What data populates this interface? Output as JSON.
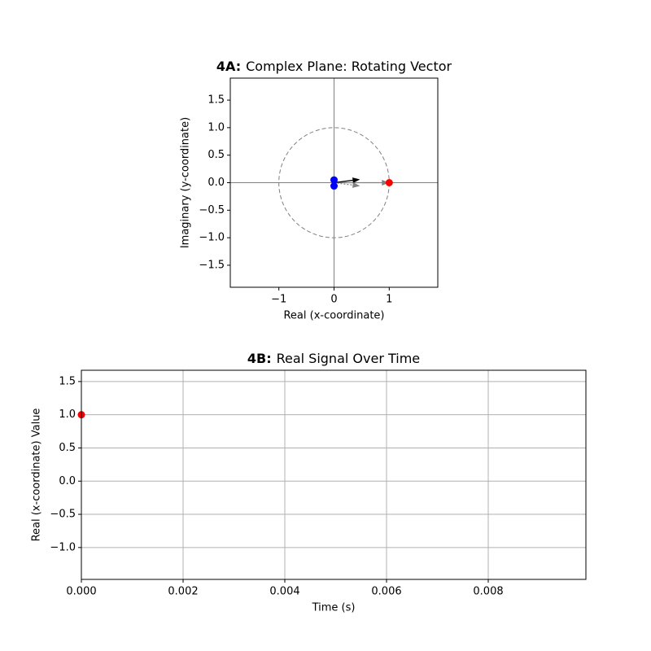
{
  "chart_data": [
    {
      "type": "vector",
      "title_label": "4A:",
      "title": "Complex Plane: Rotating Vector",
      "x_label": "Real (x-coordinate)",
      "y_label": "Imaginary (y-coordinate)",
      "xlim": [
        -1.88,
        1.88
      ],
      "ylim": [
        -1.9,
        1.9
      ],
      "xticks": [
        {
          "value": -1,
          "label": "−1"
        },
        0,
        1
      ],
      "yticks": [
        {
          "value": -1.5,
          "label": "−1.5"
        },
        {
          "value": -1.0,
          "label": "−1.0"
        },
        {
          "value": -0.5,
          "label": "−0.5"
        },
        {
          "value": 0.0,
          "label": "0.0"
        },
        0.5,
        {
          "value": 1.0,
          "label": "1.0"
        },
        1.5
      ],
      "zero_lines": true,
      "circle_radius": 1,
      "arrows": [
        {
          "color": "#808080",
          "dash": false,
          "x": 1,
          "y": 0
        },
        {
          "color": "#000000",
          "dash": false,
          "x": 0.47,
          "y": 0.06
        },
        {
          "color": "#808080",
          "dash": true,
          "x": 0.47,
          "y": -0.06
        }
      ],
      "points": [
        {
          "color": "#ff0000",
          "x": 1,
          "y": 0
        },
        {
          "color": "#0000ff",
          "x": 0,
          "y": 0.05
        },
        {
          "color": "#0000ff",
          "x": 0,
          "y": -0.06
        }
      ]
    },
    {
      "type": "line",
      "title_label": "4B:",
      "title": "Real Signal Over Time",
      "x_label": "Time (s)",
      "y_label": "Real (x-coordinate) Value",
      "xlim": [
        0,
        0.00992
      ],
      "ylim": [
        -1.48,
        1.67
      ],
      "xticks": [
        {
          "value": 0,
          "label": "0.000"
        },
        {
          "value": 0.002,
          "label": "0.002"
        },
        {
          "value": 0.004,
          "label": "0.004"
        },
        {
          "value": 0.006,
          "label": "0.006"
        },
        {
          "value": 0.008,
          "label": "0.008"
        }
      ],
      "yticks": [
        {
          "value": -1.0,
          "label": "−1.0"
        },
        {
          "value": -0.5,
          "label": "−0.5"
        },
        {
          "value": 0.0,
          "label": "0.0"
        },
        0.5,
        {
          "value": 1.0,
          "label": "1.0"
        },
        1.5
      ],
      "grid": true,
      "series": [
        {
          "color": "#ff0000",
          "x": [
            0
          ],
          "values": [
            1
          ]
        }
      ]
    }
  ]
}
